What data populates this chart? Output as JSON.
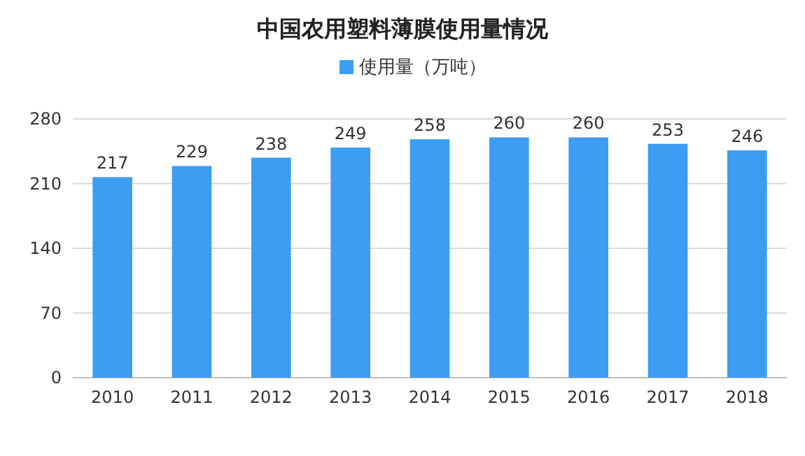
{
  "chart_data": {
    "type": "bar",
    "title": "中国农用塑料薄膜使用量情况",
    "categories": [
      "2010",
      "2011",
      "2012",
      "2013",
      "2014",
      "2015",
      "2016",
      "2017",
      "2018"
    ],
    "series": [
      {
        "name": "使用量（万吨）",
        "color": "#3d9df3",
        "values": [
          217,
          229,
          238,
          249,
          258,
          260,
          260,
          253,
          246
        ]
      }
    ],
    "ylim": [
      0,
      280
    ],
    "yticks": [
      0,
      70,
      140,
      210,
      280
    ],
    "grid": "y",
    "legend": "top",
    "data_labels": true
  }
}
